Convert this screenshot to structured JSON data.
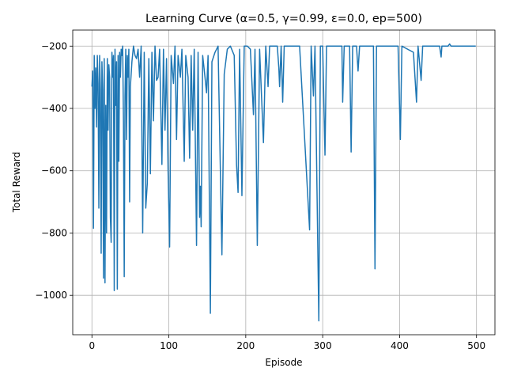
{
  "chart_data": {
    "type": "line",
    "title": "Learning Curve (α=0.5, γ=0.99, ε=0.0, ep=500)",
    "x_label": "Episode",
    "y_label": "Total Reward",
    "x": [
      0,
      1,
      2,
      3,
      4,
      5,
      6,
      7,
      8,
      9,
      10,
      11,
      12,
      13,
      14,
      15,
      16,
      17,
      18,
      19,
      20,
      21,
      22,
      23,
      24,
      25,
      26,
      27,
      28,
      29,
      30,
      31,
      32,
      33,
      34,
      35,
      36,
      37,
      38,
      39,
      40,
      41,
      42,
      43,
      44,
      45,
      46,
      47,
      48,
      49,
      50,
      52,
      54,
      56,
      58,
      60,
      62,
      64,
      66,
      68,
      70,
      72,
      74,
      76,
      78,
      80,
      82,
      84,
      86,
      88,
      91,
      93,
      95,
      97,
      99,
      101,
      103,
      106,
      108,
      110,
      112,
      115,
      117,
      120,
      122,
      125,
      127,
      129,
      131,
      133,
      136,
      138,
      140,
      141,
      142,
      144,
      147,
      149,
      151,
      154,
      156,
      160,
      164,
      169,
      172,
      176,
      180,
      185,
      188,
      190,
      192,
      195,
      198,
      202,
      206,
      210,
      212,
      215,
      218,
      223,
      226,
      229,
      231,
      241,
      243,
      244,
      246,
      248,
      250,
      260,
      270,
      283,
      285,
      288,
      290,
      295,
      297,
      300,
      303,
      305,
      315,
      325,
      326,
      328,
      335,
      337,
      339,
      344,
      346,
      348,
      366,
      368,
      370,
      398,
      401,
      403,
      418,
      422,
      424,
      428,
      430,
      452,
      454,
      455,
      463,
      465,
      467,
      499
    ],
    "series": [
      {
        "name": "Total Reward",
        "color": "#1f77b4",
        "values": [
          -330,
          -280,
          -785,
          -230,
          -400,
          -270,
          -460,
          -230,
          -320,
          -720,
          -230,
          -340,
          -865,
          -250,
          -340,
          -945,
          -240,
          -960,
          -390,
          -800,
          -240,
          -470,
          -260,
          -300,
          -750,
          -830,
          -220,
          -300,
          -230,
          -985,
          -210,
          -390,
          -250,
          -980,
          -230,
          -570,
          -220,
          -300,
          -210,
          -230,
          -200,
          -440,
          -940,
          -360,
          -210,
          -500,
          -230,
          -300,
          -210,
          -700,
          -330,
          -250,
          -200,
          -230,
          -240,
          -210,
          -300,
          -200,
          -800,
          -220,
          -720,
          -640,
          -240,
          -610,
          -220,
          -440,
          -200,
          -310,
          -300,
          -210,
          -580,
          -210,
          -470,
          -240,
          -600,
          -845,
          -230,
          -320,
          -200,
          -500,
          -230,
          -300,
          -210,
          -570,
          -230,
          -300,
          -560,
          -230,
          -470,
          -210,
          -840,
          -220,
          -750,
          -650,
          -780,
          -230,
          -300,
          -350,
          -230,
          -1058,
          -250,
          -220,
          -200,
          -870,
          -290,
          -210,
          -200,
          -230,
          -580,
          -670,
          -210,
          -680,
          -200,
          -200,
          -210,
          -420,
          -210,
          -840,
          -210,
          -510,
          -200,
          -330,
          -200,
          -200,
          -270,
          -330,
          -200,
          -380,
          -200,
          -200,
          -200,
          -790,
          -200,
          -360,
          -200,
          -1082,
          -200,
          -200,
          -550,
          -200,
          -200,
          -200,
          -380,
          -200,
          -200,
          -540,
          -200,
          -200,
          -280,
          -200,
          -200,
          -915,
          -200,
          -200,
          -500,
          -200,
          -220,
          -380,
          -200,
          -310,
          -200,
          -200,
          -235,
          -200,
          -200,
          -193,
          -200,
          -200
        ]
      }
    ],
    "xlim": [
      -24.95,
      523.95
    ],
    "ylim": [
      -1126.5,
      -148.5
    ],
    "xticks": [
      0,
      100,
      200,
      300,
      400,
      500
    ],
    "yticks": [
      {
        "value": -1000,
        "label": "−1000"
      },
      {
        "value": -800,
        "label": "−800"
      },
      {
        "value": -600,
        "label": "−600"
      },
      {
        "value": -400,
        "label": "−400"
      },
      {
        "value": -200,
        "label": "−200"
      }
    ],
    "grid": true
  }
}
